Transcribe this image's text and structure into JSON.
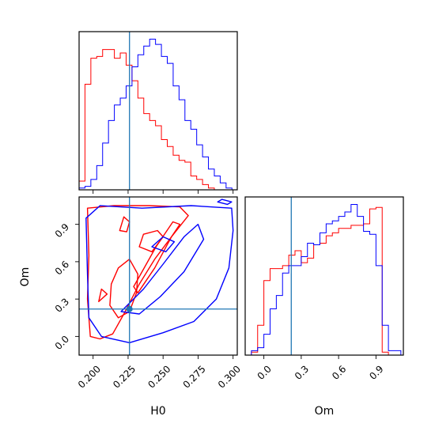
{
  "colors": {
    "series_red": "#ff0000",
    "series_blue": "#0000ff",
    "truth_line": "#1f77b4",
    "frame": "#000000",
    "background": "#ffffff"
  },
  "chart_data": {
    "type": "corner",
    "parameters": [
      "H0",
      "Om"
    ],
    "truth": {
      "H0": 0.226,
      "Om": 0.22
    },
    "grid": false,
    "panels": [
      {
        "id": "H0-marginal",
        "type": "histogram",
        "parameter": "H0",
        "xlim": [
          0.19,
          0.303
        ],
        "bin_edges": [
          0.19,
          0.1942,
          0.1984,
          0.2026,
          0.2068,
          0.211,
          0.2152,
          0.2194,
          0.2236,
          0.2278,
          0.232,
          0.2362,
          0.2404,
          0.2446,
          0.2488,
          0.253,
          0.2572,
          0.2614,
          0.2656,
          0.2698,
          0.274,
          0.2782,
          0.2824,
          0.2866,
          0.2908,
          0.295,
          0.2992
        ],
        "series": [
          {
            "name": "",
            "color": "#ff0000",
            "counts": [
              5,
              61,
              76,
              77,
              81,
              81,
              76,
              79,
              72,
              63,
              53,
              44,
              40,
              37,
              29,
              25,
              20,
              17,
              16,
              8,
              6,
              3,
              1,
              0,
              0,
              0
            ]
          },
          {
            "name": "",
            "color": "#0000ff",
            "counts": [
              1,
              2,
              6,
              14,
              27,
              40,
              49,
              53,
              60,
              71,
              78,
              83,
              87,
              84,
              77,
              73,
              60,
              52,
              40,
              35,
              26,
              19,
              12,
              8,
              4,
              1
            ]
          }
        ]
      },
      {
        "id": "H0-Om-joint",
        "type": "contour",
        "x_parameter": "H0",
        "y_parameter": "Om",
        "xlim": [
          0.19,
          0.303
        ],
        "ylim": [
          -0.15,
          1.12
        ],
        "series": [
          {
            "name": "",
            "color": "#ff0000",
            "contours": [
              [
                [
                  0.196,
                  1.03
                ],
                [
                  0.215,
                  1.05
                ],
                [
                  0.24,
                  1.05
                ],
                [
                  0.262,
                  1.04
                ],
                [
                  0.268,
                  0.97
                ],
                [
                  0.256,
                  0.8
                ],
                [
                  0.244,
                  0.62
                ],
                [
                  0.233,
                  0.42
                ],
                [
                  0.222,
                  0.18
                ],
                [
                  0.214,
                  0.02
                ],
                [
                  0.205,
                  -0.02
                ],
                [
                  0.198,
                  0.0
                ],
                [
                  0.196,
                  0.3
                ],
                [
                  0.197,
                  0.65
                ],
                [
                  0.196,
                  1.03
                ]
              ],
              [
                [
                  0.218,
                  0.55
                ],
                [
                  0.226,
                  0.62
                ],
                [
                  0.232,
                  0.5
                ],
                [
                  0.231,
                  0.35
                ],
                [
                  0.226,
                  0.2
                ],
                [
                  0.218,
                  0.15
                ],
                [
                  0.212,
                  0.25
                ],
                [
                  0.213,
                  0.42
                ],
                [
                  0.218,
                  0.55
                ]
              ],
              [
                [
                  0.232,
                  0.35
                ],
                [
                  0.244,
                  0.55
                ],
                [
                  0.256,
                  0.8
                ],
                [
                  0.262,
                  0.9
                ],
                [
                  0.257,
                  0.92
                ],
                [
                  0.245,
                  0.72
                ],
                [
                  0.234,
                  0.5
                ],
                [
                  0.229,
                  0.4
                ],
                [
                  0.232,
                  0.35
                ]
              ],
              [
                [
                  0.233,
                  0.72
                ],
                [
                  0.236,
                  0.82
                ],
                [
                  0.246,
                  0.85
                ],
                [
                  0.25,
                  0.8
                ],
                [
                  0.242,
                  0.68
                ],
                [
                  0.233,
                  0.72
                ]
              ],
              [
                [
                  0.219,
                  0.85
                ],
                [
                  0.222,
                  0.96
                ],
                [
                  0.226,
                  0.92
                ],
                [
                  0.224,
                  0.84
                ],
                [
                  0.219,
                  0.85
                ]
              ],
              [
                [
                  0.204,
                  0.28
                ],
                [
                  0.206,
                  0.38
                ],
                [
                  0.21,
                  0.34
                ],
                [
                  0.204,
                  0.28
                ]
              ]
            ]
          },
          {
            "name": "",
            "color": "#0000ff",
            "contours": [
              [
                [
                  0.195,
                  0.95
                ],
                [
                  0.205,
                  1.05
                ],
                [
                  0.235,
                  1.03
                ],
                [
                  0.27,
                  1.05
                ],
                [
                  0.299,
                  1.03
                ],
                [
                  0.3,
                  0.85
                ],
                [
                  0.297,
                  0.55
                ],
                [
                  0.288,
                  0.3
                ],
                [
                  0.272,
                  0.12
                ],
                [
                  0.25,
                  0.03
                ],
                [
                  0.226,
                  -0.05
                ],
                [
                  0.206,
                  0.0
                ],
                [
                  0.197,
                  0.15
                ],
                [
                  0.196,
                  0.5
                ],
                [
                  0.195,
                  0.95
                ]
              ],
              [
                [
                  0.22,
                  0.2
                ],
                [
                  0.236,
                  0.38
                ],
                [
                  0.25,
                  0.58
                ],
                [
                  0.265,
                  0.8
                ],
                [
                  0.275,
                  0.9
                ],
                [
                  0.279,
                  0.78
                ],
                [
                  0.265,
                  0.52
                ],
                [
                  0.248,
                  0.32
                ],
                [
                  0.233,
                  0.18
                ],
                [
                  0.22,
                  0.2
                ]
              ],
              [
                [
                  0.242,
                  0.72
                ],
                [
                  0.25,
                  0.8
                ],
                [
                  0.258,
                  0.76
                ],
                [
                  0.252,
                  0.68
                ],
                [
                  0.242,
                  0.72
                ]
              ],
              [
                [
                  0.289,
                  1.08
                ],
                [
                  0.292,
                  1.1
                ],
                [
                  0.299,
                  1.08
                ],
                [
                  0.296,
                  1.06
                ],
                [
                  0.289,
                  1.08
                ]
              ]
            ]
          }
        ]
      },
      {
        "id": "Om-marginal",
        "type": "histogram",
        "parameter": "Om",
        "xlim": [
          -0.15,
          1.12
        ],
        "bin_edges": [
          -0.1,
          -0.05,
          0.0,
          0.05,
          0.1,
          0.15,
          0.2,
          0.25,
          0.3,
          0.35,
          0.4,
          0.45,
          0.5,
          0.55,
          0.6,
          0.65,
          0.7,
          0.75,
          0.8,
          0.85,
          0.9,
          0.95,
          1.0,
          1.05,
          1.1
        ],
        "series": [
          {
            "name": "",
            "color": "#ff0000",
            "counts": [
              2,
              20,
              50,
              58,
              58,
              60,
              67,
              70,
              62,
              65,
              74,
              75,
              80,
              82,
              85,
              85,
              87,
              87,
              88,
              98,
              99,
              2,
              0,
              0
            ]
          },
          {
            "name": "",
            "color": "#0000ff",
            "counts": [
              3,
              5,
              14,
              31,
              40,
              55,
              60,
              60,
              66,
              75,
              74,
              82,
              88,
              90,
              93,
              96,
              101,
              93,
              83,
              81,
              60,
              20,
              3,
              3
            ]
          }
        ]
      }
    ],
    "x_ticks": {
      "H0": [
        "0.200",
        "0.225",
        "0.250",
        "0.275",
        "0.300"
      ],
      "Om": [
        "0.0",
        "0.3",
        "0.6",
        "0.9"
      ]
    },
    "y_ticks": {
      "Om": [
        "0.0",
        "0.3",
        "0.6",
        "0.9"
      ]
    },
    "xlabels": [
      "H0",
      "Om"
    ],
    "ylabel": "Om"
  }
}
